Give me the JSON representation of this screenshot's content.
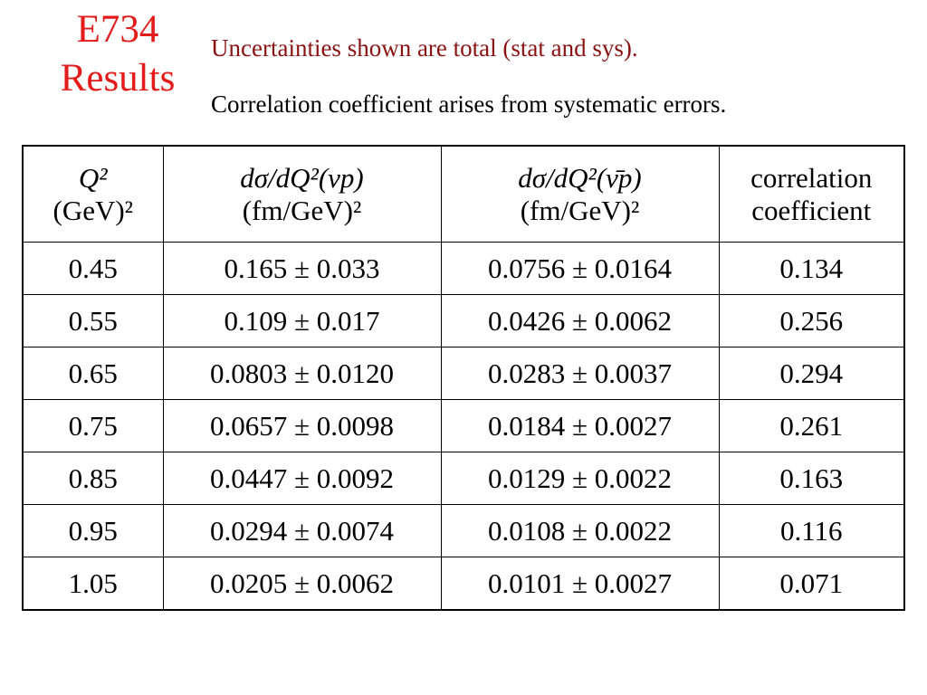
{
  "title": {
    "line1": "E734",
    "line2": "Results"
  },
  "notes": {
    "uncertainties": "Uncertainties shown are total (stat and sys).",
    "correlation": "Correlation coefficient arises from systematic errors."
  },
  "table": {
    "headers": [
      {
        "line1": "Q² ",
        "line2": "(GeV)²"
      },
      {
        "line1": "dσ/dQ²(νp)",
        "line2": "(fm/GeV)²"
      },
      {
        "line1": "dσ/dQ²(ν̄p)",
        "line2": "(fm/GeV)²"
      },
      {
        "line1": "correlation",
        "line2": "coefficient"
      }
    ],
    "rows": [
      [
        "0.45",
        "0.165 ± 0.033",
        "0.0756 ± 0.0164",
        "0.134"
      ],
      [
        "0.55",
        "0.109 ± 0.017",
        "0.0426 ± 0.0062",
        "0.256"
      ],
      [
        "0.65",
        "0.0803 ± 0.0120",
        "0.0283 ± 0.0037",
        "0.294"
      ],
      [
        "0.75",
        "0.0657 ± 0.0098",
        "0.0184 ± 0.0027",
        "0.261"
      ],
      [
        "0.85",
        "0.0447 ± 0.0092",
        "0.0129 ± 0.0022",
        "0.163"
      ],
      [
        "0.95",
        "0.0294 ± 0.0074",
        "0.0108 ± 0.0022",
        "0.116"
      ],
      [
        "1.05",
        "0.0205 ± 0.0062",
        "0.0101 ± 0.0027",
        "0.071"
      ]
    ]
  },
  "colors": {
    "title": "#e31b1b",
    "note": "#8b1212"
  }
}
